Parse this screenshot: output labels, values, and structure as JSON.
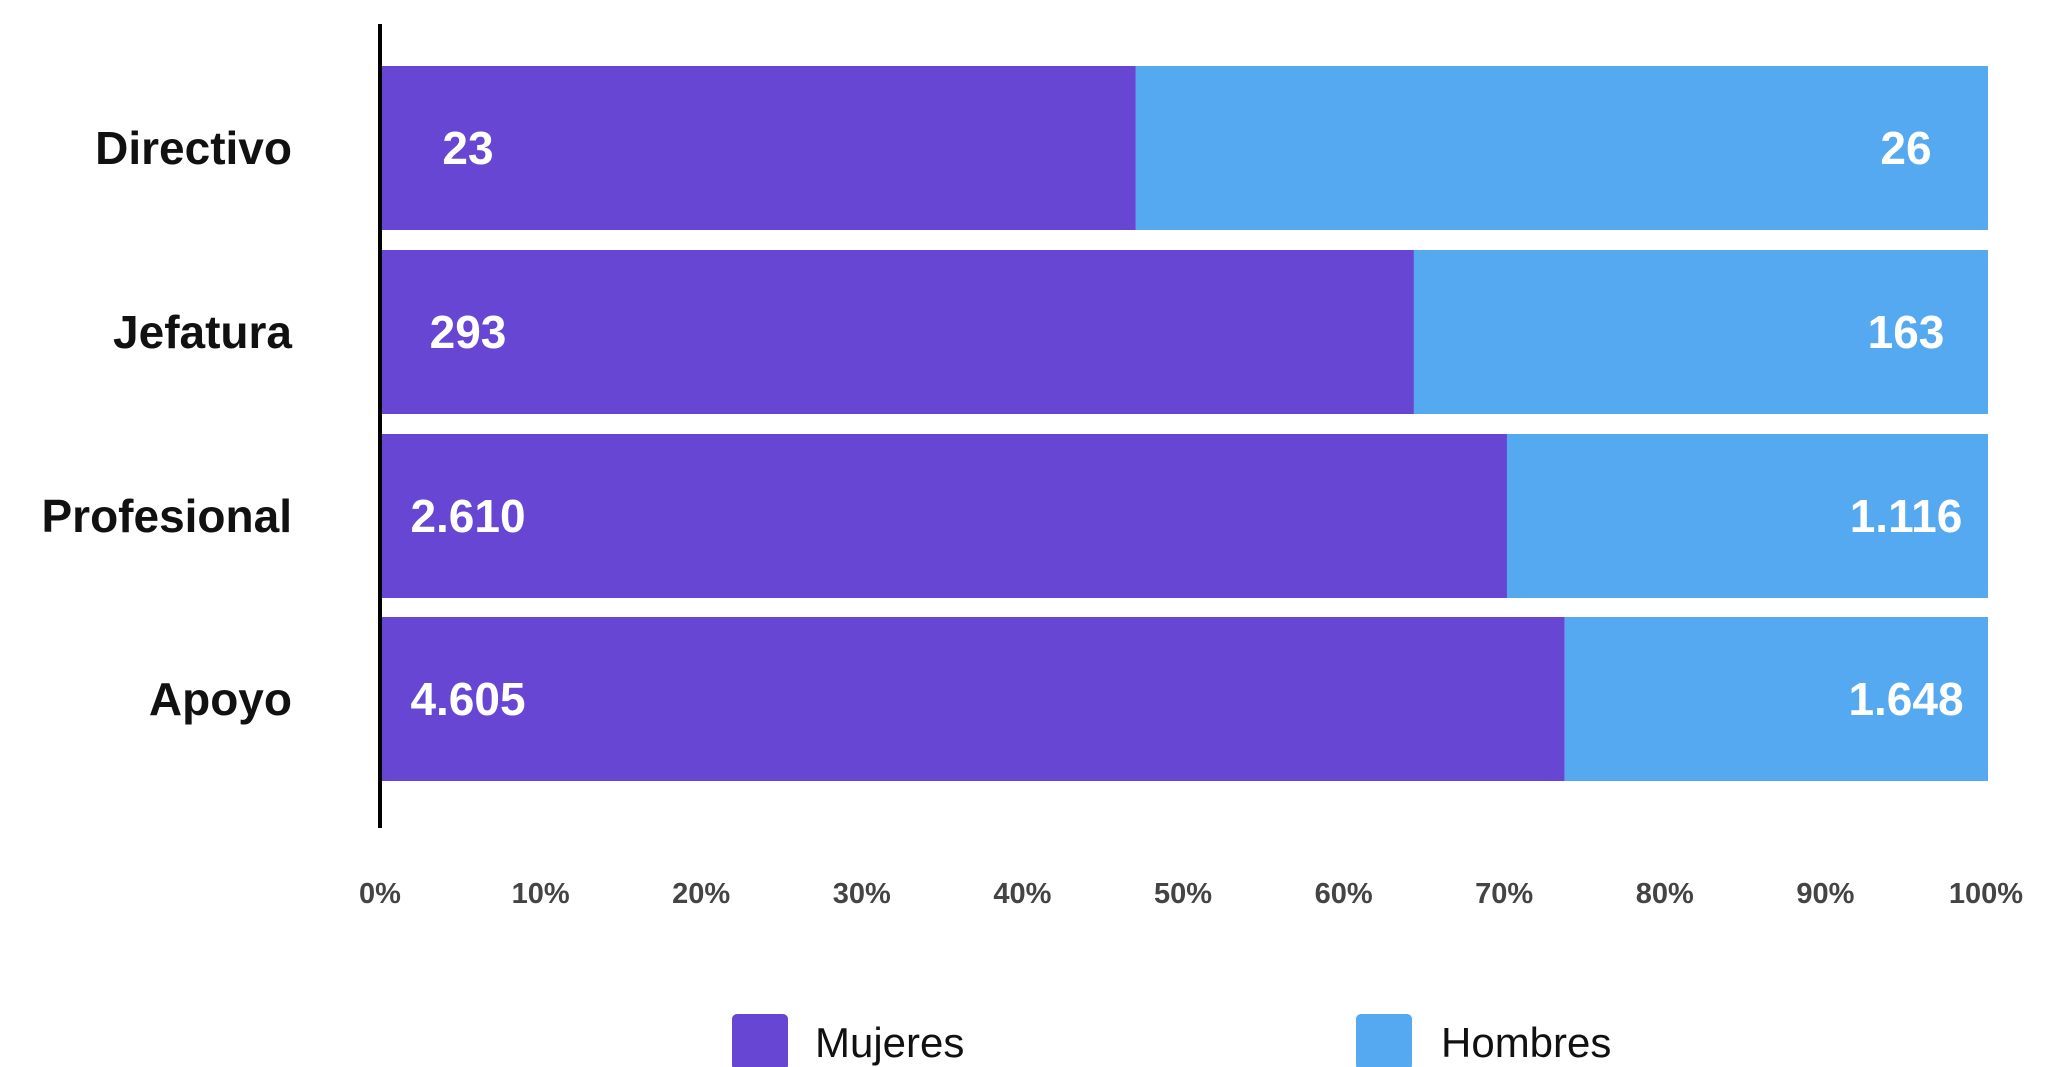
{
  "chart_data": {
    "type": "bar",
    "orientation": "horizontal",
    "stacked": "percent",
    "categories": [
      "Directivo",
      "Jefatura",
      "Profesional",
      "Apoyo"
    ],
    "series": [
      {
        "name": "Mujeres",
        "color": "#6646d2",
        "values": [
          23,
          293,
          2610,
          4605
        ],
        "labels": [
          "23",
          "293",
          "2.610",
          "4.605"
        ]
      },
      {
        "name": "Hombres",
        "color": "#54a9f1",
        "values": [
          26,
          163,
          1116,
          1648
        ],
        "labels": [
          "26",
          "163",
          "1.116",
          "1.648"
        ]
      }
    ],
    "x_ticks": [
      "0%",
      "10%",
      "20%",
      "30%",
      "40%",
      "50%",
      "60%",
      "70%",
      "80%",
      "90%",
      "100%"
    ],
    "xlim": [
      0,
      100
    ],
    "grid": false,
    "legend": "bottom"
  }
}
